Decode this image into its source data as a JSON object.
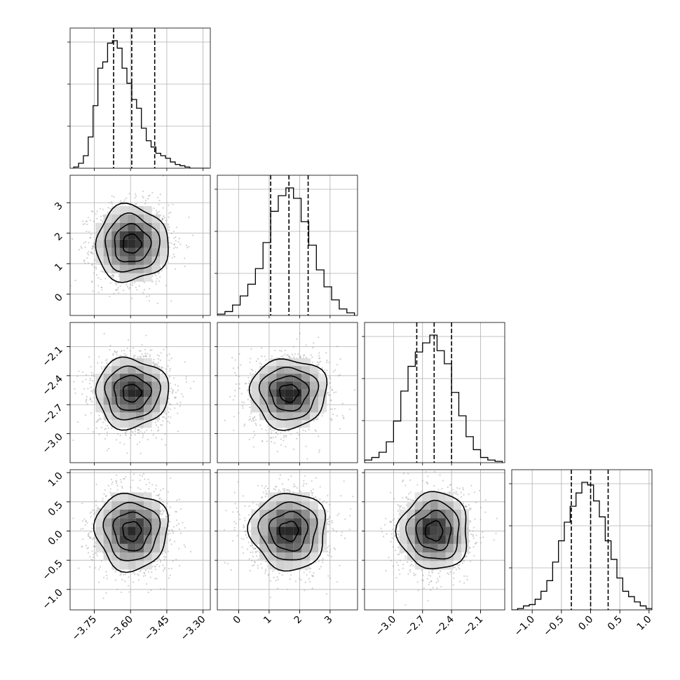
{
  "chart_data": {
    "type": "corner",
    "grid": true,
    "colors": {
      "hist": "#000000",
      "scatter": "#9a9a9a",
      "grid": "#b0b0b0",
      "frame": "#000000"
    },
    "params": [
      {
        "range": [
          -3.85,
          -3.27
        ],
        "ticks": [
          -3.75,
          -3.6,
          -3.45,
          -3.3
        ],
        "tick_labels": [
          "−3.75",
          "−3.60",
          "−3.45",
          "−3.30"
        ],
        "quantiles": [
          -3.67,
          -3.595,
          -3.5
        ],
        "mean": -3.595,
        "sd": 0.075
      },
      {
        "range": [
          -0.7,
          3.9
        ],
        "ticks": [
          0,
          1,
          2,
          3
        ],
        "tick_labels": [
          "0",
          "1",
          "2",
          "3"
        ],
        "quantiles": [
          1.05,
          1.65,
          2.28
        ],
        "mean": 1.65,
        "sd": 0.62
      },
      {
        "range": [
          -3.3,
          -1.85
        ],
        "ticks": [
          -3.0,
          -2.7,
          -2.4,
          -2.1
        ],
        "tick_labels": [
          "−3.0",
          "−2.7",
          "−2.4",
          "−2.1"
        ],
        "quantiles": [
          -2.76,
          -2.58,
          -2.4
        ],
        "mean": -2.58,
        "sd": 0.18
      },
      {
        "range": [
          -1.35,
          1.05
        ],
        "ticks": [
          -1.0,
          -0.5,
          0.0,
          0.5,
          1.0
        ],
        "tick_labels": [
          "−1.0",
          "−0.5",
          "0.0",
          "0.5",
          "1.0"
        ],
        "quantiles": [
          -0.33,
          0.0,
          0.3
        ],
        "mean": 0.0,
        "sd": 0.33
      }
    ],
    "histograms": [
      {
        "bins": [
          -3.835,
          -3.815,
          -3.795,
          -3.775,
          -3.755,
          -3.735,
          -3.715,
          -3.695,
          -3.675,
          -3.655,
          -3.635,
          -3.615,
          -3.595,
          -3.575,
          -3.555,
          -3.535,
          -3.515,
          -3.495,
          -3.475,
          -3.455,
          -3.435,
          -3.415,
          -3.395,
          -3.375,
          -3.355,
          -3.335,
          -3.315,
          -3.295,
          -3.275
        ],
        "counts": [
          1,
          4,
          10,
          25,
          50,
          80,
          85,
          100,
          102,
          96,
          80,
          68,
          55,
          48,
          32,
          22,
          17,
          12,
          10,
          8,
          5,
          3,
          2,
          1,
          0,
          0,
          0,
          0
        ]
      },
      {
        "bins": [
          -0.7,
          -0.45,
          -0.2,
          0.05,
          0.3,
          0.55,
          0.8,
          1.05,
          1.3,
          1.55,
          1.8,
          2.05,
          2.3,
          2.55,
          2.8,
          3.05,
          3.3,
          3.55,
          3.8
        ],
        "counts": [
          1,
          3,
          8,
          15,
          24,
          36,
          56,
          80,
          92,
          98,
          90,
          72,
          54,
          35,
          22,
          12,
          5,
          2
        ]
      },
      {
        "bins": [
          -3.3,
          -3.225,
          -3.15,
          -3.075,
          -3.0,
          -2.925,
          -2.85,
          -2.775,
          -2.7,
          -2.625,
          -2.55,
          -2.475,
          -2.4,
          -2.325,
          -2.25,
          -2.175,
          -2.1,
          -2.025,
          -1.95,
          -1.875
        ],
        "counts": [
          2,
          4,
          8,
          16,
          32,
          55,
          74,
          85,
          92,
          98,
          86,
          76,
          54,
          36,
          20,
          10,
          4,
          2,
          1
        ]
      },
      {
        "bins": [
          -1.35,
          -1.25,
          -1.15,
          -1.05,
          -0.95,
          -0.85,
          -0.75,
          -0.65,
          -0.55,
          -0.45,
          -0.35,
          -0.25,
          -0.15,
          -0.05,
          0.05,
          0.15,
          0.25,
          0.35,
          0.45,
          0.55,
          0.65,
          0.75,
          0.85,
          0.95,
          1.05
        ],
        "counts": [
          0,
          1,
          3,
          4,
          8,
          14,
          22,
          36,
          52,
          66,
          78,
          88,
          96,
          94,
          82,
          70,
          52,
          38,
          24,
          14,
          10,
          6,
          3,
          1
        ]
      }
    ]
  }
}
